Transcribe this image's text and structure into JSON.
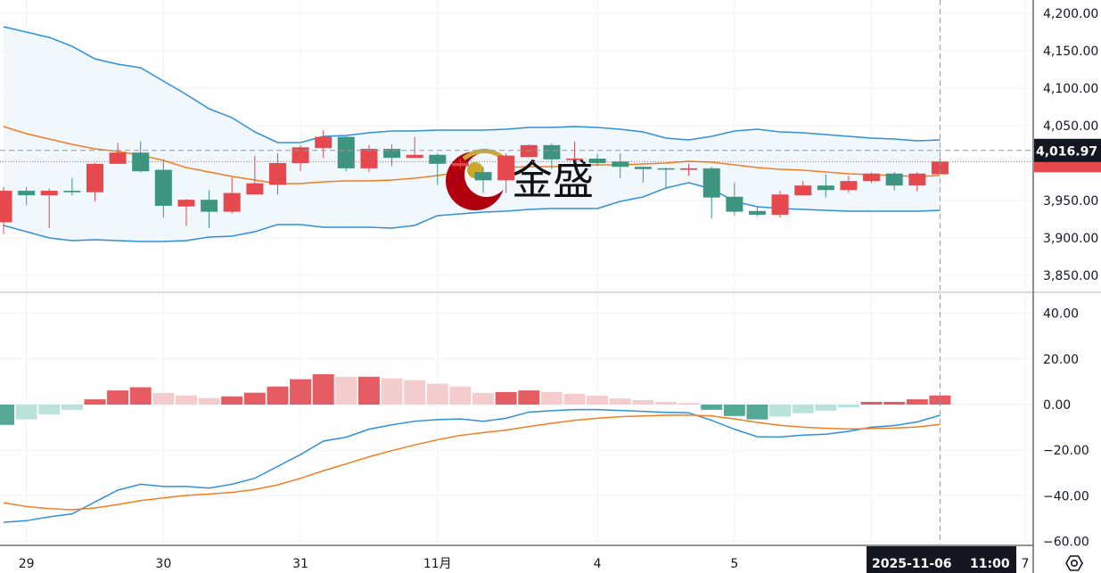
{
  "colors": {
    "up": "#e5484d",
    "down": "#3d9480",
    "band_line": "#2f8fdc",
    "band_fill": "#f0f7fd",
    "middle": "#f57c1f",
    "macd": "#2f8fdc",
    "signal": "#f57c1f",
    "hist_up_strong": "#e55c63",
    "hist_up_weak": "#f4cccd",
    "hist_down_strong": "#55a896",
    "hist_down_weak": "#b9e3da",
    "crosshair_label_bg": "#131722"
  },
  "watermark": {
    "text": "金盛",
    "logo": "red-crescent-gold-ball"
  },
  "crosshair": {
    "price_label": "4,016.97",
    "time_label": "2025-11-06   11:00",
    "date_part": "2025-11-06",
    "time_part": "11:00"
  },
  "settings_icon": "gear-hexagon-icon",
  "chart_data": [
    {
      "type": "candlestick",
      "indicator": "Bollinger Bands",
      "ylim": [
        3830,
        4215
      ],
      "y_ticks": [
        "4,200.00",
        "4,150.00",
        "4,100.00",
        "4,050.00",
        "3,950.00",
        "3,900.00",
        "3,850.00"
      ],
      "y_tick_values": [
        4200,
        4150,
        4100,
        4050,
        3950,
        3900,
        3850
      ],
      "x_labels": [
        {
          "index": 1,
          "label": "29"
        },
        {
          "index": 7,
          "label": "30"
        },
        {
          "index": 13,
          "label": "31"
        },
        {
          "index": 19,
          "label": "11月"
        },
        {
          "index": 26,
          "label": "4"
        },
        {
          "index": 32,
          "label": "5"
        },
        {
          "index": 43,
          "label": "7"
        }
      ],
      "grid": true,
      "ohlc": [
        [
          3921,
          3968,
          3905,
          3963
        ],
        [
          3963,
          3968,
          3944,
          3957
        ],
        [
          3957,
          3966,
          3913,
          3963
        ],
        [
          3963,
          3980,
          3957,
          3961
        ],
        [
          3961,
          4000,
          3949,
          3999
        ],
        [
          3999,
          4027,
          3999,
          4014
        ],
        [
          4014,
          4029,
          3988,
          3989
        ],
        [
          3991,
          4005,
          3927,
          3943
        ],
        [
          3942,
          3952,
          3916,
          3951
        ],
        [
          3951,
          3964,
          3913,
          3935
        ],
        [
          3935,
          3981,
          3933,
          3960
        ],
        [
          3958,
          4010,
          3958,
          3973
        ],
        [
          3971,
          4013,
          3958,
          4000
        ],
        [
          4000,
          4024,
          3989,
          4021
        ],
        [
          4020,
          4044,
          4007,
          4035
        ],
        [
          4035,
          4036,
          3989,
          3993
        ],
        [
          3993,
          4024,
          3988,
          4019
        ],
        [
          4019,
          4025,
          3996,
          4007
        ],
        [
          4007,
          4035,
          4007,
          4011
        ],
        [
          4011,
          4013,
          3971,
          3999
        ],
        [
          3996,
          4006,
          3992,
          4000
        ],
        [
          3988,
          3995,
          3960,
          3977
        ],
        [
          3977,
          4013,
          3960,
          4010
        ],
        [
          4008,
          4025,
          4008,
          4024
        ],
        [
          4024,
          4026,
          3992,
          4005
        ],
        [
          4004,
          4029,
          4004,
          4006
        ],
        [
          4006,
          4012,
          3996,
          4000
        ],
        [
          4002,
          4013,
          3980,
          3995
        ],
        [
          3995,
          3995,
          3974,
          3992
        ],
        [
          3993,
          3994,
          3966,
          3992
        ],
        [
          3991,
          3999,
          3983,
          3993
        ],
        [
          3993,
          3995,
          3926,
          3954
        ],
        [
          3955,
          3974,
          3930,
          3935
        ],
        [
          3936,
          3941,
          3929,
          3931
        ],
        [
          3931,
          3963,
          3927,
          3958
        ],
        [
          3957,
          3976,
          3957,
          3970
        ],
        [
          3970,
          3985,
          3954,
          3964
        ],
        [
          3964,
          3983,
          3960,
          3976
        ],
        [
          3976,
          3988,
          3973,
          3986
        ],
        [
          3986,
          3988,
          3964,
          3970
        ],
        [
          3970,
          3988,
          3962,
          3986
        ],
        [
          3985,
          4007,
          3985,
          4002
        ]
      ],
      "upper": [
        4182.1,
        4175.0,
        4167.9,
        4156.0,
        4139.3,
        4132.1,
        4127.4,
        4109.5,
        4091.7,
        4072.6,
        4060.7,
        4041.7,
        4027.4,
        4027.4,
        4035.7,
        4036.9,
        4040.5,
        4042.9,
        4042.9,
        4044.0,
        4044.0,
        4044.0,
        4045.2,
        4047.6,
        4047.6,
        4048.8,
        4047.6,
        4045.2,
        4041.7,
        4033.3,
        4030.9,
        4035.7,
        4042.9,
        4045.2,
        4041.7,
        4040.5,
        4038.1,
        4035.7,
        4033.3,
        4032.1,
        4029.8,
        4030.9
      ],
      "middle": [
        4048.8,
        4039.3,
        4032.1,
        4025.0,
        4019.0,
        4015.5,
        4010.7,
        4003.6,
        3994.0,
        3988.1,
        3982.1,
        3977.4,
        3972.6,
        3972.6,
        3975.0,
        3976.2,
        3976.2,
        3977.4,
        3979.8,
        3983.3,
        3988.1,
        3991.7,
        3994.0,
        3995.2,
        3995.2,
        3996.4,
        3997.6,
        3997.6,
        3998.8,
        4000.0,
        4002.4,
        4001.2,
        3997.6,
        3994.0,
        3991.7,
        3990.5,
        3988.1,
        3985.7,
        3984.5,
        3983.3,
        3982.1,
        3983.3
      ],
      "lower": [
        3916.7,
        3908.3,
        3900.0,
        3896.4,
        3897.6,
        3896.4,
        3895.2,
        3895.2,
        3896.4,
        3901.2,
        3902.4,
        3908.3,
        3917.9,
        3917.9,
        3914.3,
        3914.3,
        3914.3,
        3913.1,
        3916.7,
        3929.8,
        3932.1,
        3934.5,
        3935.7,
        3938.1,
        3939.3,
        3939.3,
        3939.3,
        3948.8,
        3954.8,
        3966.7,
        3973.8,
        3965.5,
        3948.8,
        3941.7,
        3939.3,
        3938.1,
        3936.9,
        3935.7,
        3935.7,
        3935.7,
        3935.7,
        3936.9
      ]
    },
    {
      "type": "bar+line",
      "indicator": "MACD",
      "ylim": [
        -62,
        46
      ],
      "y_ticks": [
        "40.00",
        "20.00",
        "0.00",
        "−20.00",
        "−40.00",
        "−60.00"
      ],
      "y_tick_values": [
        40,
        20,
        0,
        -20,
        -40,
        -60
      ],
      "grid": true,
      "histogram": [
        -8.9,
        -6.5,
        -4.3,
        -2.3,
        2.3,
        6.2,
        7.6,
        5.1,
        4.0,
        2.9,
        3.6,
        5.2,
        7.9,
        11.1,
        13.3,
        12.2,
        12.2,
        11.5,
        10.7,
        9.1,
        7.9,
        5.1,
        5.5,
        6.2,
        5.5,
        4.7,
        3.9,
        2.7,
        2.0,
        1.2,
        0.7,
        -2.3,
        -5.0,
        -6.5,
        -5.3,
        -3.8,
        -2.7,
        -1.2,
        1.2,
        1.2,
        2.3,
        4.0
      ],
      "macd": [
        -51.6,
        -50.9,
        -49.2,
        -47.9,
        -42.7,
        -37.5,
        -34.9,
        -35.9,
        -35.9,
        -36.6,
        -34.9,
        -32.3,
        -27.1,
        -21.9,
        -16.0,
        -14.3,
        -10.8,
        -8.9,
        -7.3,
        -6.6,
        -6.3,
        -7.3,
        -6.0,
        -3.3,
        -2.7,
        -2.2,
        -2.2,
        -2.6,
        -3.0,
        -3.4,
        -3.6,
        -6.9,
        -10.8,
        -14.1,
        -14.2,
        -13.4,
        -13.0,
        -11.7,
        -9.9,
        -9.2,
        -7.6,
        -4.7
      ],
      "signal": [
        -43.0,
        -44.7,
        -45.6,
        -46.1,
        -45.3,
        -43.8,
        -42.1,
        -40.9,
        -39.8,
        -39.2,
        -38.5,
        -37.2,
        -35.2,
        -32.3,
        -29.0,
        -26.0,
        -22.9,
        -20.2,
        -17.7,
        -15.4,
        -13.5,
        -12.3,
        -11.2,
        -9.6,
        -8.2,
        -6.9,
        -6.0,
        -5.3,
        -5.0,
        -4.7,
        -4.6,
        -5.0,
        -6.3,
        -7.8,
        -9.1,
        -9.9,
        -10.4,
        -10.7,
        -10.5,
        -10.3,
        -9.8,
        -8.7
      ]
    }
  ]
}
